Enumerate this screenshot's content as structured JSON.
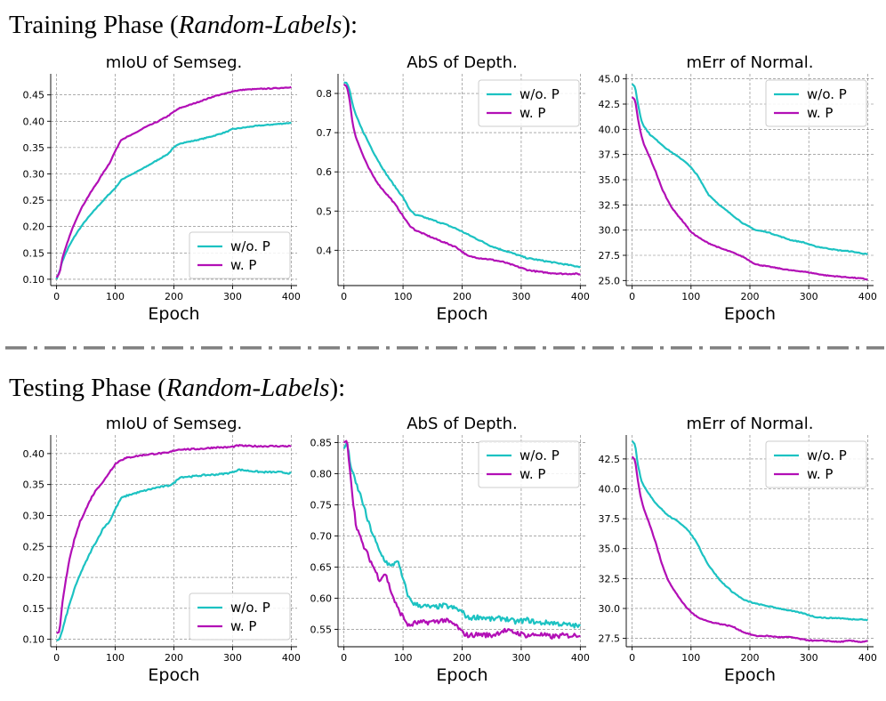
{
  "phase_titles": [
    {
      "main": "Training Phase (",
      "em": "Random-Labels",
      "tail": "):"
    },
    {
      "main": "Testing Phase (",
      "em": "Random-Labels",
      "tail": "):"
    }
  ],
  "colors": {
    "wo": "#1cc2c2",
    "w": "#b20fb6",
    "separator": "#808080"
  },
  "chart_data": [
    {
      "type": "line",
      "phase": "training",
      "title": "mIoU of Semseg.",
      "xlabel": "Epoch",
      "xlim": [
        -10,
        410
      ],
      "ylim": [
        0.088,
        0.49
      ],
      "xticks": [
        0,
        100,
        200,
        300,
        400
      ],
      "yticks": [
        0.1,
        0.15,
        0.2,
        0.25,
        0.3,
        0.35,
        0.4,
        0.45
      ],
      "ytick_decimals": 2,
      "legend": "lower right",
      "series": [
        {
          "name": "w/o. P",
          "color": "#1cc2c2",
          "noise": 0.0008,
          "x": [
            0,
            5,
            10,
            20,
            30,
            40,
            50,
            60,
            70,
            80,
            90,
            100,
            110,
            120,
            130,
            150,
            170,
            190,
            200,
            210,
            230,
            250,
            270,
            290,
            300,
            320,
            340,
            360,
            380,
            400
          ],
          "y": [
            0.1,
            0.115,
            0.135,
            0.16,
            0.18,
            0.197,
            0.212,
            0.225,
            0.238,
            0.25,
            0.262,
            0.273,
            0.288,
            0.295,
            0.3,
            0.312,
            0.325,
            0.338,
            0.35,
            0.358,
            0.362,
            0.367,
            0.373,
            0.38,
            0.385,
            0.388,
            0.391,
            0.393,
            0.395,
            0.397
          ]
        },
        {
          "name": "w. P",
          "color": "#b20fb6",
          "noise": 0.0008,
          "x": [
            0,
            5,
            10,
            20,
            30,
            40,
            50,
            60,
            70,
            80,
            90,
            100,
            110,
            120,
            130,
            150,
            170,
            190,
            200,
            210,
            230,
            250,
            270,
            290,
            300,
            320,
            340,
            360,
            380,
            400
          ],
          "y": [
            0.103,
            0.112,
            0.14,
            0.175,
            0.205,
            0.23,
            0.25,
            0.268,
            0.285,
            0.303,
            0.32,
            0.343,
            0.365,
            0.37,
            0.375,
            0.388,
            0.398,
            0.41,
            0.418,
            0.425,
            0.432,
            0.44,
            0.448,
            0.453,
            0.457,
            0.46,
            0.461,
            0.462,
            0.463,
            0.465
          ]
        }
      ]
    },
    {
      "type": "line",
      "phase": "training",
      "title": "AbS of Depth.",
      "xlabel": "Epoch",
      "xlim": [
        -10,
        410
      ],
      "ylim": [
        0.31,
        0.85
      ],
      "xticks": [
        0,
        100,
        200,
        300,
        400
      ],
      "yticks": [
        0.4,
        0.5,
        0.6,
        0.7,
        0.8
      ],
      "ytick_decimals": 1,
      "legend": "upper right",
      "series": [
        {
          "name": "w/o. P",
          "color": "#1cc2c2",
          "noise": 0.0015,
          "x": [
            0,
            5,
            10,
            15,
            20,
            30,
            40,
            50,
            60,
            70,
            80,
            90,
            100,
            110,
            120,
            130,
            150,
            170,
            190,
            210,
            230,
            250,
            270,
            290,
            310,
            330,
            350,
            370,
            390,
            400
          ],
          "y": [
            0.828,
            0.827,
            0.805,
            0.77,
            0.745,
            0.71,
            0.68,
            0.65,
            0.623,
            0.598,
            0.576,
            0.555,
            0.535,
            0.507,
            0.49,
            0.487,
            0.477,
            0.467,
            0.455,
            0.44,
            0.425,
            0.41,
            0.4,
            0.39,
            0.38,
            0.375,
            0.37,
            0.365,
            0.36,
            0.358
          ]
        },
        {
          "name": "w. P",
          "color": "#b20fb6",
          "noise": 0.0015,
          "x": [
            0,
            5,
            10,
            15,
            20,
            30,
            40,
            50,
            60,
            70,
            80,
            90,
            100,
            110,
            120,
            130,
            150,
            170,
            190,
            210,
            230,
            250,
            270,
            290,
            310,
            330,
            350,
            370,
            390,
            400
          ],
          "y": [
            0.823,
            0.818,
            0.78,
            0.72,
            0.69,
            0.65,
            0.615,
            0.588,
            0.565,
            0.547,
            0.53,
            0.51,
            0.487,
            0.465,
            0.452,
            0.445,
            0.432,
            0.42,
            0.408,
            0.385,
            0.38,
            0.376,
            0.37,
            0.36,
            0.35,
            0.345,
            0.342,
            0.34,
            0.34,
            0.339
          ]
        }
      ]
    },
    {
      "type": "line",
      "phase": "training",
      "title": "mErr of Normal.",
      "xlabel": "Epoch",
      "xlim": [
        -10,
        410
      ],
      "ylim": [
        24.5,
        45.5
      ],
      "xticks": [
        0,
        100,
        200,
        300,
        400
      ],
      "yticks": [
        25.0,
        27.5,
        30.0,
        32.5,
        35.0,
        37.5,
        40.0,
        42.5,
        45.0
      ],
      "ytick_decimals": 1,
      "legend": "upper right",
      "series": [
        {
          "name": "w/o. P",
          "color": "#1cc2c2",
          "noise": 0.04,
          "x": [
            0,
            5,
            10,
            15,
            20,
            30,
            40,
            50,
            60,
            70,
            80,
            90,
            100,
            110,
            120,
            130,
            150,
            170,
            190,
            210,
            230,
            250,
            270,
            290,
            310,
            330,
            350,
            370,
            390,
            400
          ],
          "y": [
            44.5,
            44.2,
            42.5,
            41.0,
            40.3,
            39.5,
            39.0,
            38.5,
            38.0,
            37.6,
            37.2,
            36.8,
            36.2,
            35.5,
            34.5,
            33.5,
            32.4,
            31.5,
            30.6,
            30.0,
            29.8,
            29.4,
            29.0,
            28.8,
            28.4,
            28.2,
            28.0,
            27.9,
            27.7,
            27.6
          ]
        },
        {
          "name": "w. P",
          "color": "#b20fb6",
          "noise": 0.04,
          "x": [
            0,
            5,
            10,
            15,
            20,
            30,
            40,
            50,
            60,
            70,
            80,
            90,
            100,
            110,
            120,
            130,
            150,
            170,
            190,
            210,
            230,
            250,
            270,
            290,
            310,
            330,
            350,
            370,
            390,
            400
          ],
          "y": [
            43.2,
            42.9,
            41.0,
            39.5,
            38.5,
            37.2,
            35.8,
            34.2,
            33.0,
            32.0,
            31.3,
            30.6,
            29.8,
            29.4,
            29.0,
            28.7,
            28.2,
            27.8,
            27.3,
            26.6,
            26.4,
            26.2,
            26.0,
            25.9,
            25.7,
            25.5,
            25.4,
            25.3,
            25.2,
            25.1
          ]
        }
      ]
    },
    {
      "type": "line",
      "phase": "testing",
      "title": "mIoU of Semseg.",
      "xlabel": "Epoch",
      "xlim": [
        -10,
        410
      ],
      "ylim": [
        0.088,
        0.43
      ],
      "xticks": [
        0,
        100,
        200,
        300,
        400
      ],
      "yticks": [
        0.1,
        0.15,
        0.2,
        0.25,
        0.3,
        0.35,
        0.4
      ],
      "ytick_decimals": 2,
      "legend": "lower right",
      "series": [
        {
          "name": "w/o. P",
          "color": "#1cc2c2",
          "noise": 0.0012,
          "x": [
            0,
            5,
            10,
            20,
            30,
            40,
            50,
            60,
            70,
            80,
            90,
            100,
            110,
            120,
            130,
            150,
            170,
            190,
            200,
            210,
            230,
            250,
            270,
            290,
            300,
            310,
            330,
            350,
            380,
            400
          ],
          "y": [
            0.098,
            0.1,
            0.115,
            0.15,
            0.18,
            0.205,
            0.225,
            0.245,
            0.262,
            0.28,
            0.29,
            0.31,
            0.328,
            0.332,
            0.335,
            0.34,
            0.345,
            0.348,
            0.352,
            0.362,
            0.363,
            0.365,
            0.366,
            0.368,
            0.37,
            0.374,
            0.372,
            0.37,
            0.37,
            0.368
          ]
        },
        {
          "name": "w. P",
          "color": "#b20fb6",
          "noise": 0.0012,
          "x": [
            0,
            5,
            10,
            20,
            30,
            40,
            50,
            60,
            70,
            80,
            90,
            100,
            110,
            120,
            130,
            150,
            170,
            190,
            200,
            210,
            230,
            250,
            270,
            290,
            300,
            310,
            330,
            350,
            380,
            400
          ],
          "y": [
            0.11,
            0.112,
            0.16,
            0.22,
            0.26,
            0.29,
            0.31,
            0.33,
            0.345,
            0.355,
            0.37,
            0.383,
            0.39,
            0.393,
            0.395,
            0.398,
            0.4,
            0.401,
            0.405,
            0.407,
            0.407,
            0.408,
            0.41,
            0.41,
            0.411,
            0.413,
            0.412,
            0.412,
            0.412,
            0.412
          ]
        }
      ]
    },
    {
      "type": "line",
      "phase": "testing",
      "title": "AbS of Depth.",
      "xlabel": "Epoch",
      "xlim": [
        -10,
        410
      ],
      "ylim": [
        0.522,
        0.862
      ],
      "xticks": [
        0,
        100,
        200,
        300,
        400
      ],
      "yticks": [
        0.55,
        0.6,
        0.65,
        0.7,
        0.75,
        0.8,
        0.85
      ],
      "ytick_decimals": 2,
      "legend": "upper right",
      "series": [
        {
          "name": "w/o. P",
          "color": "#1cc2c2",
          "noise": 0.004,
          "x": [
            0,
            5,
            10,
            15,
            20,
            30,
            40,
            50,
            60,
            70,
            80,
            90,
            100,
            110,
            120,
            150,
            170,
            190,
            200,
            210,
            230,
            250,
            270,
            290,
            310,
            330,
            350,
            370,
            390,
            400
          ],
          "y": [
            0.84,
            0.85,
            0.82,
            0.8,
            0.785,
            0.76,
            0.725,
            0.7,
            0.675,
            0.66,
            0.65,
            0.662,
            0.63,
            0.6,
            0.59,
            0.585,
            0.588,
            0.583,
            0.578,
            0.568,
            0.57,
            0.566,
            0.568,
            0.562,
            0.565,
            0.56,
            0.561,
            0.558,
            0.556,
            0.554
          ]
        },
        {
          "name": "w. P",
          "color": "#b20fb6",
          "noise": 0.004,
          "x": [
            0,
            5,
            10,
            15,
            20,
            30,
            40,
            50,
            60,
            70,
            80,
            90,
            100,
            110,
            120,
            150,
            170,
            190,
            200,
            210,
            230,
            250,
            270,
            290,
            310,
            330,
            350,
            370,
            390,
            400
          ],
          "y": [
            0.85,
            0.853,
            0.81,
            0.76,
            0.72,
            0.69,
            0.67,
            0.65,
            0.63,
            0.64,
            0.61,
            0.585,
            0.57,
            0.555,
            0.56,
            0.562,
            0.565,
            0.556,
            0.545,
            0.54,
            0.542,
            0.54,
            0.548,
            0.545,
            0.54,
            0.542,
            0.538,
            0.54,
            0.54,
            0.542
          ]
        }
      ]
    },
    {
      "type": "line",
      "phase": "testing",
      "title": "mErr of Normal.",
      "xlabel": "Epoch",
      "xlim": [
        -10,
        410
      ],
      "ylim": [
        26.8,
        44.5
      ],
      "xticks": [
        0,
        100,
        200,
        300,
        400
      ],
      "yticks": [
        27.5,
        30.0,
        32.5,
        35.0,
        37.5,
        40.0,
        42.5
      ],
      "ytick_decimals": 1,
      "legend": "upper right",
      "series": [
        {
          "name": "w/o. P",
          "color": "#1cc2c2",
          "noise": 0.04,
          "x": [
            0,
            5,
            10,
            15,
            20,
            30,
            40,
            50,
            60,
            70,
            80,
            90,
            100,
            110,
            120,
            130,
            150,
            170,
            190,
            210,
            230,
            250,
            270,
            290,
            310,
            330,
            350,
            370,
            390,
            400
          ],
          "y": [
            44.0,
            43.7,
            42.0,
            40.8,
            40.2,
            39.5,
            38.8,
            38.3,
            37.8,
            37.5,
            37.2,
            36.8,
            36.2,
            35.5,
            34.5,
            33.6,
            32.3,
            31.4,
            30.7,
            30.4,
            30.2,
            30.0,
            29.8,
            29.6,
            29.3,
            29.2,
            29.2,
            29.1,
            29.1,
            29.0
          ]
        },
        {
          "name": "w. P",
          "color": "#b20fb6",
          "noise": 0.04,
          "x": [
            0,
            5,
            10,
            15,
            20,
            30,
            40,
            50,
            60,
            70,
            80,
            90,
            100,
            110,
            120,
            130,
            150,
            170,
            190,
            210,
            230,
            250,
            270,
            290,
            310,
            330,
            350,
            370,
            390,
            400
          ],
          "y": [
            42.7,
            42.4,
            40.6,
            39.2,
            38.3,
            37.0,
            35.5,
            33.8,
            32.5,
            31.6,
            30.9,
            30.2,
            29.7,
            29.3,
            29.1,
            28.9,
            28.7,
            28.5,
            28.0,
            27.7,
            27.7,
            27.6,
            27.6,
            27.4,
            27.3,
            27.3,
            27.2,
            27.3,
            27.2,
            27.3
          ]
        }
      ]
    }
  ]
}
